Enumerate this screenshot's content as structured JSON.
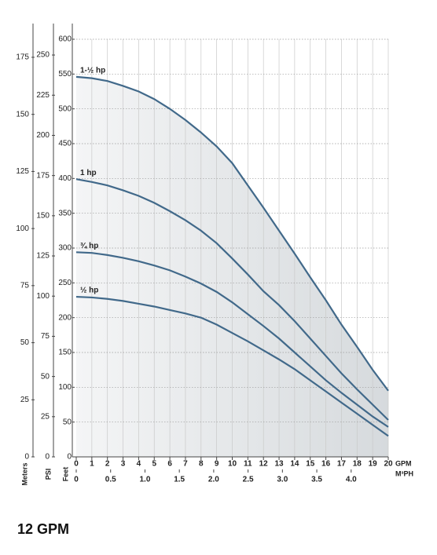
{
  "chart_data": {
    "type": "line",
    "x": [
      0,
      1,
      2,
      3,
      4,
      5,
      6,
      7,
      8,
      9,
      10,
      11,
      12,
      13,
      14,
      15,
      16,
      17,
      18,
      19,
      20
    ],
    "xlim": [
      0,
      20
    ],
    "xticks": [
      0,
      1,
      2,
      3,
      4,
      5,
      6,
      7,
      8,
      9,
      10,
      11,
      12,
      13,
      14,
      15,
      16,
      17,
      18,
      19,
      20
    ],
    "xlabel": "GPM",
    "x2lim": [
      0,
      4.54
    ],
    "x2ticks": [
      0,
      0.5,
      {
        "value": 1,
        "label": "1.0"
      },
      1.5,
      {
        "value": 2,
        "label": "2.0"
      },
      2.5,
      {
        "value": 3,
        "label": "3.0"
      },
      3.5,
      {
        "value": 4,
        "label": "4.0"
      }
    ],
    "x2label": "M³PH",
    "ylim": [
      0,
      600
    ],
    "yticks": [
      0,
      50,
      100,
      150,
      200,
      250,
      300,
      350,
      400,
      450,
      500,
      550,
      600
    ],
    "ylabel": "Feet",
    "y2lim": [
      0,
      259.8
    ],
    "y2ticks": [
      0,
      25,
      50,
      75,
      100,
      125,
      150,
      175,
      200,
      225,
      250
    ],
    "y2label": "PSI",
    "y3lim": [
      0,
      182.9
    ],
    "y3ticks": [
      0,
      25,
      50,
      75,
      100,
      125,
      150,
      175
    ],
    "y3label": "Meters",
    "grid": true,
    "series": [
      {
        "name": "1-½ hp",
        "color": "#41698a",
        "values": [
          546,
          544,
          540,
          533,
          525,
          514,
          500,
          484,
          466,
          446,
          422,
          390,
          358,
          325,
          292,
          258,
          225,
          190,
          158,
          125,
          95
        ]
      },
      {
        "name": "1 hp",
        "color": "#41698a",
        "values": [
          399,
          395,
          390,
          383,
          375,
          365,
          353,
          340,
          325,
          307,
          285,
          262,
          238,
          218,
          195,
          170,
          145,
          120,
          97,
          75,
          53
        ]
      },
      {
        "name": "¾ hp",
        "color": "#41698a",
        "values": [
          294,
          293,
          290,
          286,
          281,
          275,
          268,
          259,
          249,
          237,
          222,
          205,
          188,
          170,
          150,
          130,
          110,
          92,
          75,
          58,
          43
        ]
      },
      {
        "name": "½ hp",
        "color": "#41698a",
        "values": [
          230,
          229,
          227,
          224,
          220,
          216,
          211,
          206,
          200,
          190,
          178,
          166,
          153,
          140,
          126,
          110,
          94,
          78,
          62,
          46,
          30
        ]
      }
    ]
  },
  "caption": "12 GPM"
}
